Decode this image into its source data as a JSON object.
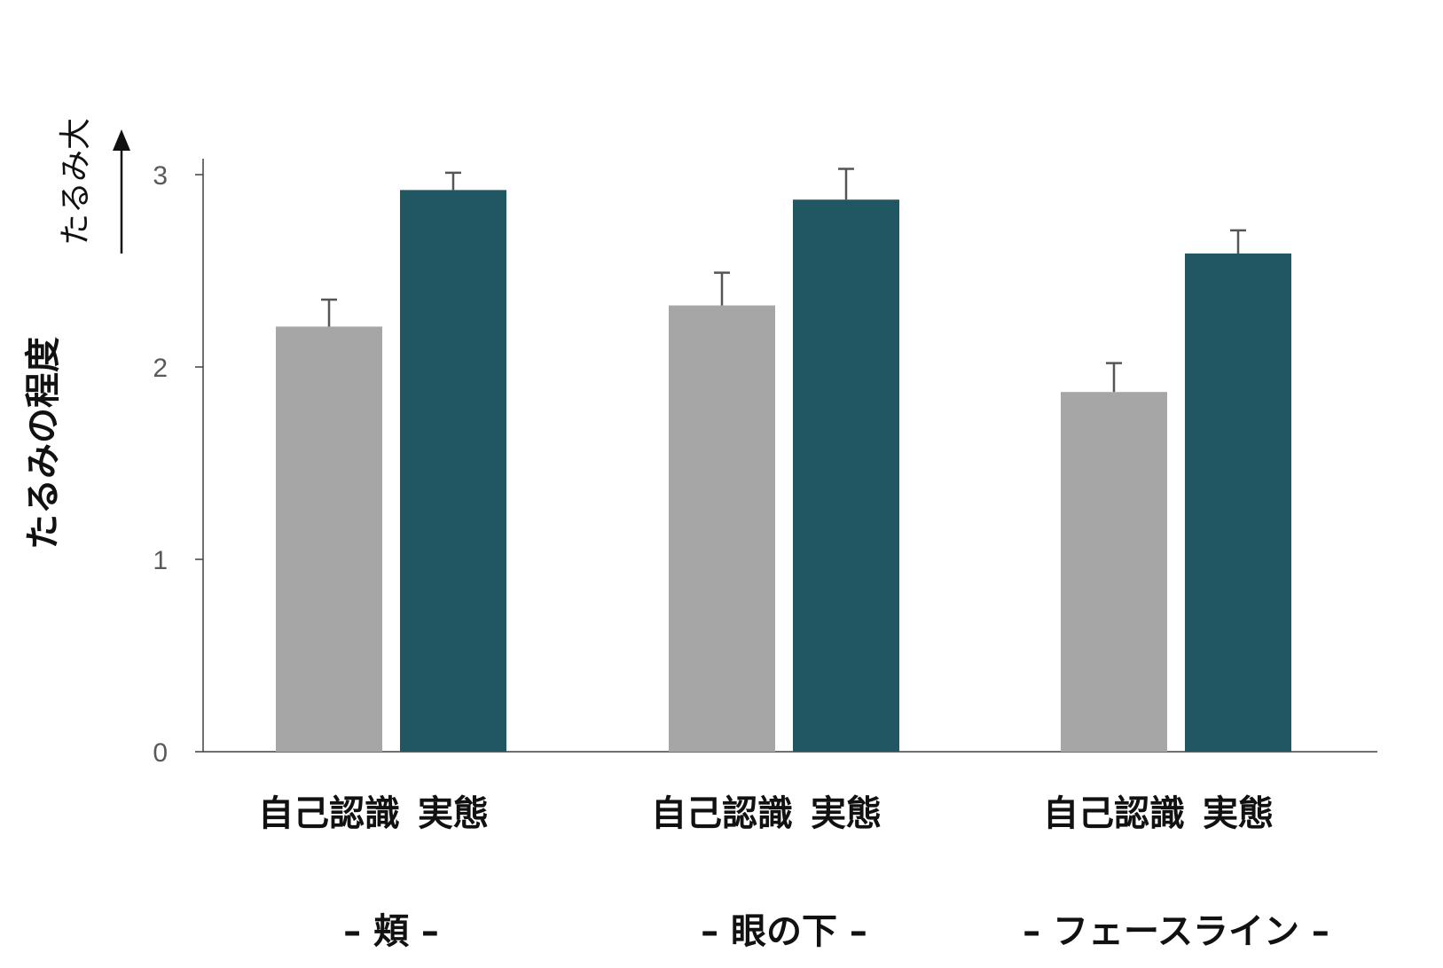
{
  "chart_data": {
    "type": "bar",
    "ylabel": "たるみの程度",
    "arrow_label": "たるみ大",
    "ylim": [
      0,
      3
    ],
    "yticks": [
      0,
      1,
      2,
      3
    ],
    "grid": false,
    "bar_categories": [
      "自己認識",
      "実態"
    ],
    "groups": [
      "– 頬 –",
      "– 眼の下 –",
      "– フェースライン –"
    ],
    "series": [
      {
        "color": "#a6a6a6",
        "values": [
          2.21,
          2.32,
          1.87
        ],
        "errors": [
          0.14,
          0.17,
          0.15
        ]
      },
      {
        "color": "#215762",
        "values": [
          2.92,
          2.87,
          2.59
        ],
        "errors": [
          0.09,
          0.16,
          0.12
        ]
      }
    ]
  }
}
